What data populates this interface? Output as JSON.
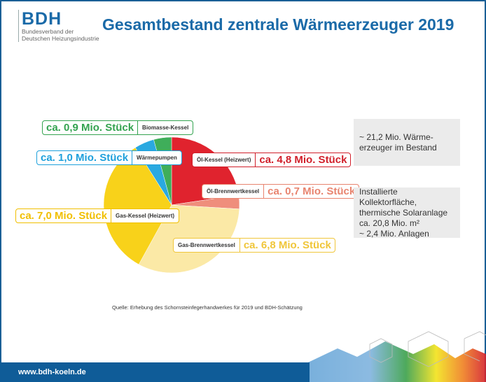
{
  "logo": {
    "abbr": "BDH",
    "line1": "Bundesverband der",
    "line2": "Deutschen Heizungsindustrie"
  },
  "title": "Gesamtbestand zentrale Wärmeerzeuger 2019",
  "chart_data": {
    "type": "pie",
    "title": "Gesamtbestand zentrale Wärmeerzeuger 2019",
    "unit": "Mio. Stück",
    "slices": [
      {
        "name": "Öl-Kessel (Heizwert)",
        "value": 4.8,
        "label": "ca. 4,8 Mio. Stück",
        "color": "#e0232e",
        "text_color": "#d11f2a"
      },
      {
        "name": "Öl-Brennwertkessel",
        "value": 0.7,
        "label": "ca. 0,7 Mio. Stück",
        "color": "#ef8e7c",
        "text_color": "#e8846f"
      },
      {
        "name": "Gas-Brennwertkessel",
        "value": 6.8,
        "label": "ca. 6,8 Mio. Stück",
        "color": "#fbe9a6",
        "text_color": "#f0c63a"
      },
      {
        "name": "Gas-Kessel (Heizwert)",
        "value": 7.0,
        "label": "ca. 7,0 Mio. Stück",
        "color": "#f8d21a",
        "text_color": "#f1bf00"
      },
      {
        "name": "Wärmepumpen",
        "value": 1.0,
        "label": "ca. 1,0 Mio. Stück",
        "color": "#2aa9e0",
        "text_color": "#1ea0dc"
      },
      {
        "name": "Biomasse-Kessel",
        "value": 0.9,
        "label": "ca. 0,9 Mio. Stück",
        "color": "#3fae5a",
        "text_color": "#34a350"
      }
    ]
  },
  "info": {
    "total_l1": "~ 21,2 Mio. Wärme-",
    "total_l2": "erzeuger im Bestand",
    "solar_l1": "Installierte Kollektorfläche,",
    "solar_l2": "thermische Solaranlage",
    "solar_l3": "ca. 20,8 Mio. m²",
    "solar_l4": "~ 2,4 Mio. Anlagen"
  },
  "source": "Quelle: Erhebung des Schornsteinfegerhandwerkes für 2019 und BDH-Schätzung",
  "footer": {
    "url": "www.bdh-koeln.de"
  }
}
